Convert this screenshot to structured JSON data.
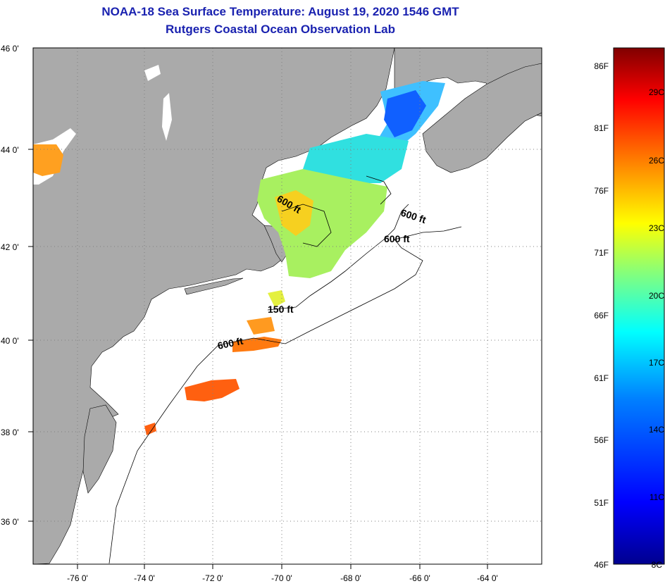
{
  "header": {
    "title_line1": "NOAA-18 Sea Surface Temperature:  August 19, 2020 1546 GMT",
    "title_line2": "Rutgers Coastal Ocean Observation Lab"
  },
  "map": {
    "lat_labels": [
      "46 0'",
      "44 0'",
      "42 0'",
      "40 0'",
      "38 0'",
      "36 0'"
    ],
    "lon_labels": [
      "-76 0'",
      "-74 0'",
      "-72 0'",
      "-70 0'",
      "-68 0'",
      "-66 0'",
      "-64 0'"
    ],
    "depth_labels": [
      "600 ft",
      "600 ft",
      "600 ft",
      "150 ft",
      "600 ft"
    ]
  },
  "colorbar": {
    "fahrenheit_labels": [
      "86F",
      "81F",
      "76F",
      "71F",
      "66F",
      "61F",
      "56F",
      "51F",
      "46F"
    ],
    "celsius_labels": [
      "29C",
      "26C",
      "23C",
      "20C",
      "17C",
      "14C",
      "11C",
      "8C"
    ],
    "range_f": [
      46,
      88
    ],
    "gradient_colors": [
      "#00008f",
      "#0000ff",
      "#0080ff",
      "#00ffff",
      "#80ff80",
      "#ffff00",
      "#ff8000",
      "#ff0000",
      "#800000"
    ]
  },
  "colors": {
    "title": "#1a22b0",
    "land": "#aaaaaa",
    "ocean": "#ffffff"
  }
}
